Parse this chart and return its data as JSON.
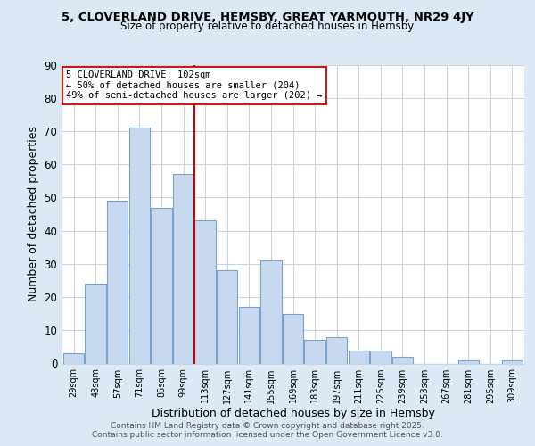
{
  "title": "5, CLOVERLAND DRIVE, HEMSBY, GREAT YARMOUTH, NR29 4JY",
  "subtitle": "Size of property relative to detached houses in Hemsby",
  "xlabel": "Distribution of detached houses by size in Hemsby",
  "ylabel": "Number of detached properties",
  "bar_labels": [
    "29sqm",
    "43sqm",
    "57sqm",
    "71sqm",
    "85sqm",
    "99sqm",
    "113sqm",
    "127sqm",
    "141sqm",
    "155sqm",
    "169sqm",
    "183sqm",
    "197sqm",
    "211sqm",
    "225sqm",
    "239sqm",
    "253sqm",
    "267sqm",
    "281sqm",
    "295sqm",
    "309sqm"
  ],
  "bar_values": [
    3,
    24,
    49,
    71,
    47,
    57,
    43,
    28,
    17,
    31,
    15,
    7,
    8,
    4,
    4,
    2,
    0,
    0,
    1,
    0,
    1
  ],
  "bar_color": "#c8d8ee",
  "bar_edge_color": "#7ba4cc",
  "reference_line_x": 5.5,
  "reference_line_color": "#cc0000",
  "annotation_text": "5 CLOVERLAND DRIVE: 102sqm\n← 50% of detached houses are smaller (204)\n49% of semi-detached houses are larger (202) →",
  "annotation_box_color": "#ffffff",
  "annotation_box_edge_color": "#cc0000",
  "ylim": [
    0,
    90
  ],
  "yticks": [
    0,
    10,
    20,
    30,
    40,
    50,
    60,
    70,
    80,
    90
  ],
  "grid_color": "#c8d4e0",
  "fig_bg_color": "#dce8f4",
  "plot_bg_color": "#ffffff",
  "footer_line1": "Contains HM Land Registry data © Crown copyright and database right 2025.",
  "footer_line2": "Contains public sector information licensed under the Open Government Licence v3.0."
}
